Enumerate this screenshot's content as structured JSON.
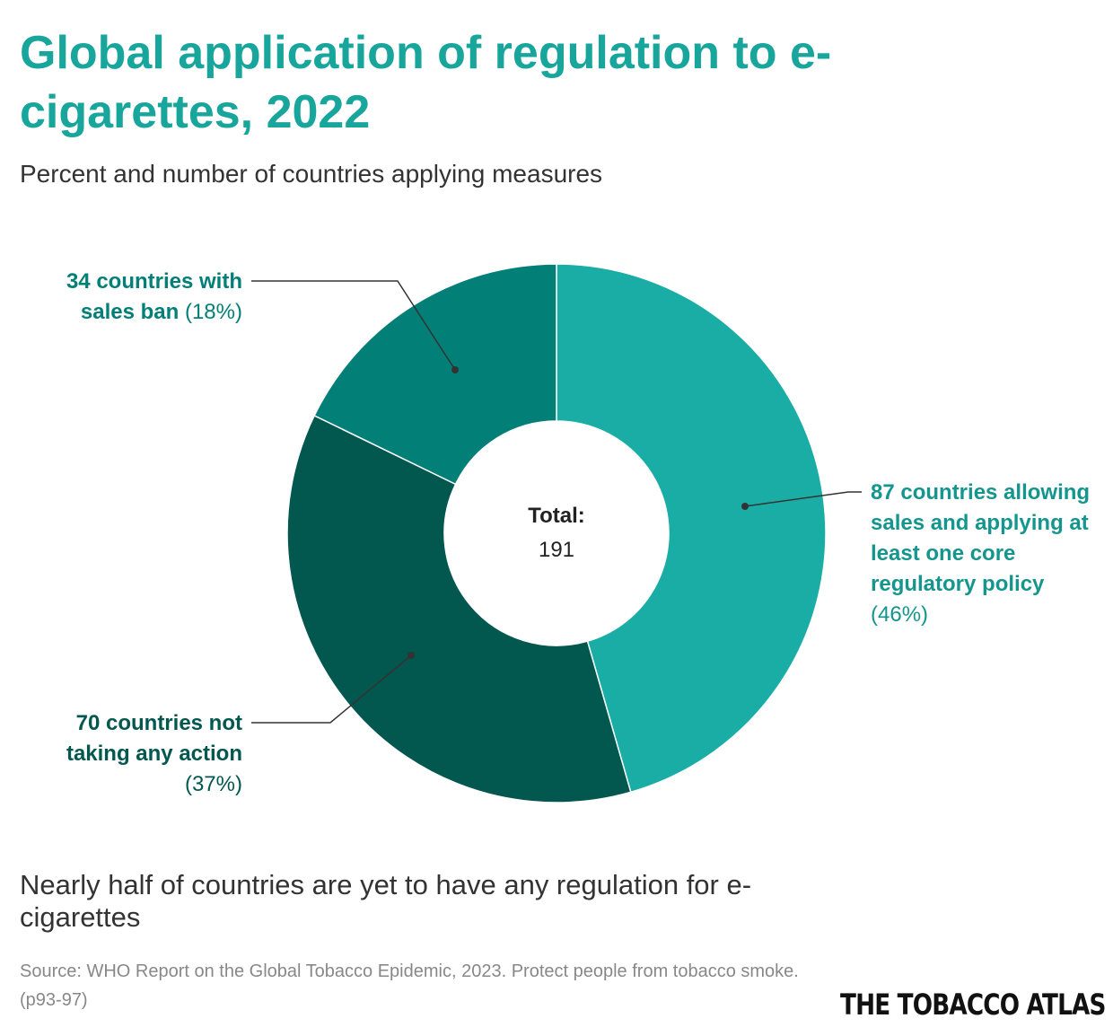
{
  "chart_data": {
    "type": "pie",
    "title": "Global application of regulation to e-cigarettes, 2022",
    "subtitle": "Percent and number of countries applying measures",
    "categories": [
      "87 countries allowing sales and applying at least one core regulatory policy",
      "70 countries not taking any action",
      "34 countries with sales ban"
    ],
    "values": [
      87,
      70,
      34
    ],
    "percent_labels": [
      "(46%)",
      "(37%)",
      "(18%)"
    ],
    "colors": [
      "#19ada5",
      "#02574f",
      "#027f77"
    ],
    "center_label": "Total:",
    "total": 191,
    "footnote": "Nearly half of countries are yet to have any regulation for e-cigarettes",
    "source": "Source: WHO Report on the Global Tobacco Epidemic, 2023. Protect people from tobacco smoke. (p93-97)",
    "brand": "THE TOBACCO ATLAS"
  }
}
